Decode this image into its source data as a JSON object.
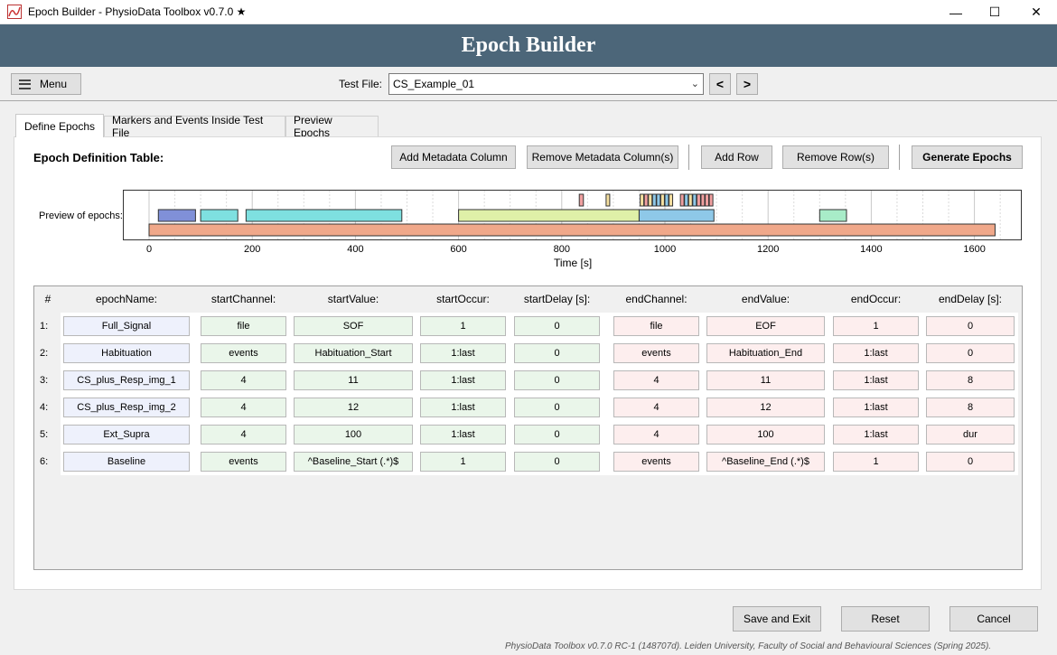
{
  "window": {
    "title": "Epoch Builder - PhysioData Toolbox v0.7.0 ★",
    "minimize": "—",
    "maximize": "☐",
    "close": "✕"
  },
  "header": {
    "title": "Epoch Builder"
  },
  "toolbar": {
    "menu_label": "Menu",
    "test_file_label": "Test File:",
    "test_file_value": "CS_Example_01",
    "prev_label": "<",
    "next_label": ">"
  },
  "tabs": [
    {
      "label": "Define Epochs",
      "active": true
    },
    {
      "label": "Markers and Events Inside Test File",
      "active": false
    },
    {
      "label": "Preview Epochs",
      "active": false
    }
  ],
  "define": {
    "section_title": "Epoch Definition Table:",
    "buttons": {
      "add_metadata": "Add Metadata Column",
      "remove_metadata": "Remove Metadata Column(s)",
      "add_row": "Add Row",
      "remove_row": "Remove Row(s)",
      "generate": "Generate Epochs"
    },
    "preview_label": "Preview of epochs:"
  },
  "chart_data": {
    "type": "timeline",
    "xlabel": "Time [s]",
    "xlim": [
      -50,
      1700
    ],
    "xticks": [
      0,
      200,
      400,
      600,
      800,
      1000,
      1200,
      1400,
      1600
    ],
    "colors": {
      "Full_Signal": "#f0a88a",
      "Habituation": "#dff0a8",
      "CS_plus_Resp_img_1": "#f0a0a0",
      "CS_plus_Resp_img_2": "#f5e0a0",
      "Ext_Supra": "#8ec8e8",
      "Baseline_a": "#8090d8",
      "Baseline_b": "#7ee0e0",
      "Baseline_c": "#a8ecc8"
    },
    "epochs": [
      {
        "name": "Full_Signal",
        "color_key": "Full_Signal",
        "lane": 0,
        "start": 0,
        "end": 1640
      },
      {
        "name": "Habituation",
        "color_key": "Habituation",
        "lane": 1,
        "start": 600,
        "end": 950
      },
      {
        "name": "Ext_Supra",
        "color_key": "Ext_Supra",
        "lane": 1,
        "start": 950,
        "end": 1095
      },
      {
        "name": "Baseline",
        "color_key": "Baseline_a",
        "lane": 1,
        "start": 18,
        "end": 90
      },
      {
        "name": "Baseline",
        "color_key": "Baseline_b",
        "lane": 1,
        "start": 100,
        "end": 172
      },
      {
        "name": "Baseline",
        "color_key": "Baseline_b",
        "lane": 1,
        "start": 188,
        "end": 490
      },
      {
        "name": "Baseline",
        "color_key": "Baseline_c",
        "lane": 1,
        "start": 1300,
        "end": 1352
      },
      {
        "name": "CS_plus_Resp_img_1",
        "color_key": "CS_plus_Resp_img_1",
        "lane": 2,
        "start": 834,
        "end": 842
      },
      {
        "name": "CS_plus_Resp_img_2",
        "color_key": "CS_plus_Resp_img_2",
        "lane": 2,
        "start": 886,
        "end": 893
      },
      {
        "name": "CS_plus_Resp_img_2",
        "color_key": "CS_plus_Resp_img_2",
        "lane": 2,
        "start": 952,
        "end": 959
      },
      {
        "name": "CS_plus_Resp_img_1",
        "color_key": "CS_plus_Resp_img_1",
        "lane": 2,
        "start": 960,
        "end": 967
      },
      {
        "name": "CS_plus_Resp_img_2",
        "color_key": "CS_plus_Resp_img_2",
        "lane": 2,
        "start": 968,
        "end": 975
      },
      {
        "name": "Ext_Supra",
        "color_key": "Ext_Supra",
        "lane": 2,
        "start": 976,
        "end": 983
      },
      {
        "name": "Ext_Supra",
        "color_key": "Ext_Supra",
        "lane": 2,
        "start": 984,
        "end": 991
      },
      {
        "name": "CS_plus_Resp_img_2",
        "color_key": "CS_plus_Resp_img_2",
        "lane": 2,
        "start": 992,
        "end": 999
      },
      {
        "name": "Ext_Supra",
        "color_key": "Ext_Supra",
        "lane": 2,
        "start": 1000,
        "end": 1007
      },
      {
        "name": "CS_plus_Resp_img_2",
        "color_key": "CS_plus_Resp_img_2",
        "lane": 2,
        "start": 1008,
        "end": 1015
      },
      {
        "name": "CS_plus_Resp_img_1",
        "color_key": "CS_plus_Resp_img_1",
        "lane": 2,
        "start": 1030,
        "end": 1037
      },
      {
        "name": "Ext_Supra",
        "color_key": "Ext_Supra",
        "lane": 2,
        "start": 1038,
        "end": 1045
      },
      {
        "name": "CS_plus_Resp_img_2",
        "color_key": "CS_plus_Resp_img_2",
        "lane": 2,
        "start": 1046,
        "end": 1053
      },
      {
        "name": "Ext_Supra",
        "color_key": "Ext_Supra",
        "lane": 2,
        "start": 1054,
        "end": 1061
      },
      {
        "name": "CS_plus_Resp_img_1",
        "color_key": "CS_plus_Resp_img_1",
        "lane": 2,
        "start": 1062,
        "end": 1069
      },
      {
        "name": "CS_plus_Resp_img_1",
        "color_key": "CS_plus_Resp_img_1",
        "lane": 2,
        "start": 1070,
        "end": 1077
      },
      {
        "name": "CS_plus_Resp_img_1",
        "color_key": "CS_plus_Resp_img_1",
        "lane": 2,
        "start": 1078,
        "end": 1085
      },
      {
        "name": "CS_plus_Resp_img_1",
        "color_key": "CS_plus_Resp_img_1",
        "lane": 2,
        "start": 1086,
        "end": 1093
      }
    ]
  },
  "table": {
    "headers": [
      "#",
      "epochName:",
      "startChannel:",
      "startValue:",
      "startOccur:",
      "startDelay [s]:",
      "endChannel:",
      "endValue:",
      "endOccur:",
      "endDelay [s]:"
    ],
    "rows": [
      {
        "num": "1:",
        "cells": [
          "Full_Signal",
          "file",
          "SOF",
          "1",
          "0",
          "file",
          "EOF",
          "1",
          "0"
        ]
      },
      {
        "num": "2:",
        "cells": [
          "Habituation",
          "events",
          "Habituation_Start",
          "1:last",
          "0",
          "events",
          "Habituation_End",
          "1:last",
          "0"
        ]
      },
      {
        "num": "3:",
        "cells": [
          "CS_plus_Resp_img_1",
          "4",
          "11",
          "1:last",
          "0",
          "4",
          "11",
          "1:last",
          "8"
        ]
      },
      {
        "num": "4:",
        "cells": [
          "CS_plus_Resp_img_2",
          "4",
          "12",
          "1:last",
          "0",
          "4",
          "12",
          "1:last",
          "8"
        ]
      },
      {
        "num": "5:",
        "cells": [
          "Ext_Supra",
          "4",
          "100",
          "1:last",
          "0",
          "4",
          "100",
          "1:last",
          "dur"
        ]
      },
      {
        "num": "6:",
        "cells": [
          "Baseline",
          "events",
          "^Baseline_Start (.*)$",
          "1",
          "0",
          "events",
          "^Baseline_End (.*)$",
          "1",
          "0"
        ]
      }
    ]
  },
  "bottom": {
    "save_exit": "Save and Exit",
    "reset": "Reset",
    "cancel": "Cancel",
    "footer": "PhysioData Toolbox v0.7.0 RC-1 (148707d). Leiden University, Faculty of Social and Behavioural Sciences (Spring 2025)."
  }
}
